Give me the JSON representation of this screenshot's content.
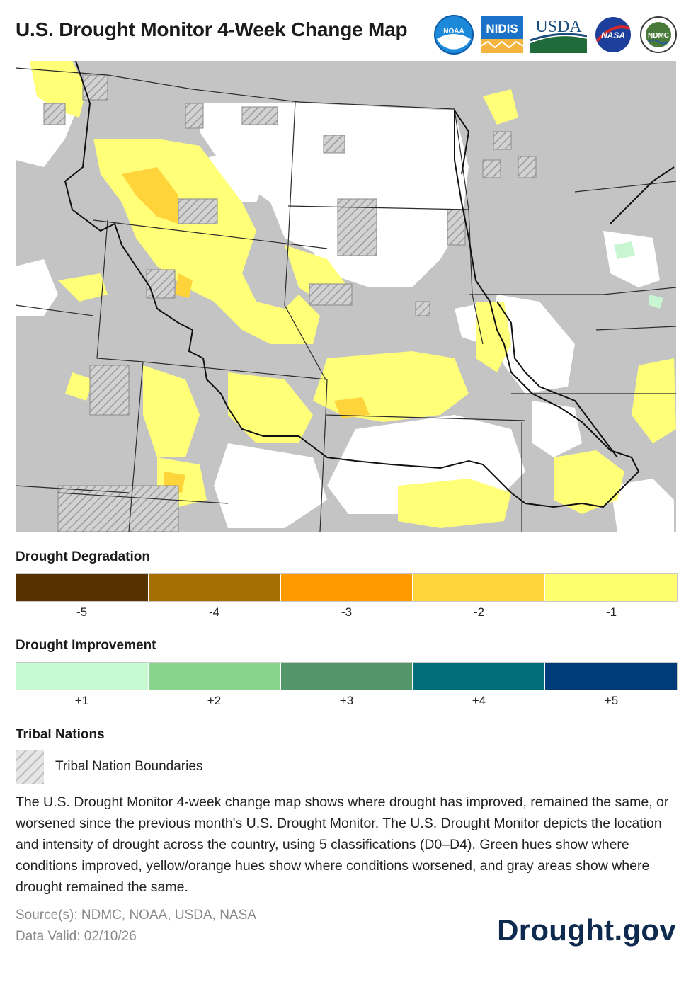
{
  "header": {
    "title": "U.S. Drought Monitor 4-Week Change Map",
    "logos": [
      {
        "name": "noaa-logo",
        "text": "NOAA"
      },
      {
        "name": "nidis-logo",
        "text": "NIDIS"
      },
      {
        "name": "usda-logo",
        "text": "USDA"
      },
      {
        "name": "nasa-logo",
        "text": "NASA"
      },
      {
        "name": "ndmc-logo",
        "text": "NDMC"
      }
    ]
  },
  "map": {
    "colors": {
      "unchanged": "#c4c4c4",
      "no_drought": "#ffffff",
      "degrade_1": "#ffff78",
      "degrade_2": "#ffd43b",
      "improve_1": "#c8f5d2",
      "boundary": "#222222"
    }
  },
  "degradation": {
    "title": "Drought Degradation",
    "items": [
      {
        "label": "-5",
        "color": "#583100"
      },
      {
        "label": "-4",
        "color": "#a56e00"
      },
      {
        "label": "-3",
        "color": "#ff9b00"
      },
      {
        "label": "-2",
        "color": "#ffd43b"
      },
      {
        "label": "-1",
        "color": "#ffff6e"
      }
    ]
  },
  "improvement": {
    "title": "Drought Improvement",
    "items": [
      {
        "label": "+1",
        "color": "#c8fad2"
      },
      {
        "label": "+2",
        "color": "#88d48c"
      },
      {
        "label": "+3",
        "color": "#529669"
      },
      {
        "label": "+4",
        "color": "#006e78"
      },
      {
        "label": "+5",
        "color": "#003c78"
      }
    ]
  },
  "tribal": {
    "title": "Tribal Nations",
    "label": "Tribal Nation Boundaries"
  },
  "description": "The U.S. Drought Monitor 4-week change map shows where drought has improved, remained the same, or worsened since the previous month's U.S. Drought Monitor. The U.S. Drought Monitor depicts the location and intensity of drought across the country, using 5 classifications (D0–D4). Green hues show where conditions improved, yellow/orange hues show where conditions worsened, and gray areas show where drought remained the same.",
  "footer": {
    "sources": "Source(s): NDMC, NOAA, USDA, NASA",
    "valid": "Data Valid: 02/10/26",
    "brand": "Drought.gov"
  }
}
